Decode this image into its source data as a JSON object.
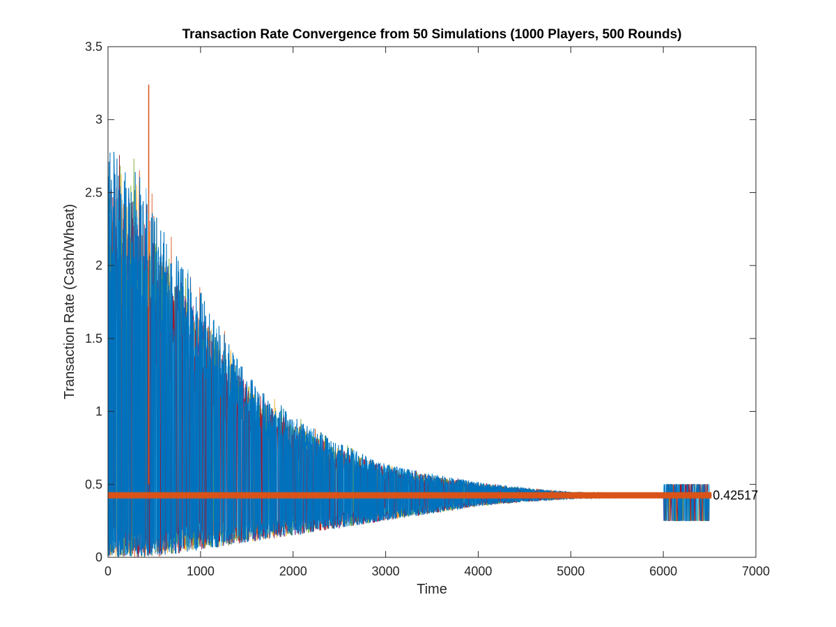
{
  "chart_data": {
    "type": "line",
    "title": "Transaction Rate Convergence from 50 Simulations (1000 Players, 500 Rounds)",
    "xlabel": "Time",
    "ylabel": "Transaction Rate (Cash/Wheat)",
    "xlim": [
      0,
      7000
    ],
    "ylim": [
      0,
      3.5
    ],
    "x_ticks": [
      "0",
      "1000",
      "2000",
      "3000",
      "4000",
      "5000",
      "6000",
      "7000"
    ],
    "y_ticks": [
      "0",
      "0.5",
      "1",
      "1.5",
      "2",
      "2.5",
      "3",
      "3.5"
    ],
    "grid": false,
    "legend": "none",
    "series_colors": [
      "#0072BD",
      "#D95319",
      "#EDB120",
      "#7E2F8E",
      "#77AC30",
      "#4DBEEE",
      "#A2142F"
    ],
    "num_simulations": 50,
    "x_max_observed": 6520,
    "peak_value": 3.24,
    "envelope": {
      "x": [
        0,
        100,
        300,
        500,
        700,
        1000,
        1500,
        2000,
        2500,
        3000,
        3500,
        4000,
        4500,
        5000,
        5500,
        6000,
        6520
      ],
      "upper": [
        3.0,
        2.9,
        2.8,
        2.5,
        2.2,
        1.9,
        1.3,
        1.0,
        0.8,
        0.65,
        0.58,
        0.52,
        0.48,
        0.45,
        0.44,
        0.43,
        0.43
      ],
      "lower": [
        0.0,
        0.0,
        0.0,
        0.0,
        0.02,
        0.05,
        0.1,
        0.15,
        0.2,
        0.25,
        0.3,
        0.35,
        0.38,
        0.4,
        0.41,
        0.42,
        0.42
      ]
    },
    "late_spread": {
      "x_start": 6000,
      "x_end": 6500,
      "upper": 0.5,
      "lower": 0.25
    },
    "convergence_line": {
      "value": 0.42517,
      "x_start": 0,
      "x_end": 6520,
      "color": "#D95319",
      "label": "0.42517"
    }
  }
}
